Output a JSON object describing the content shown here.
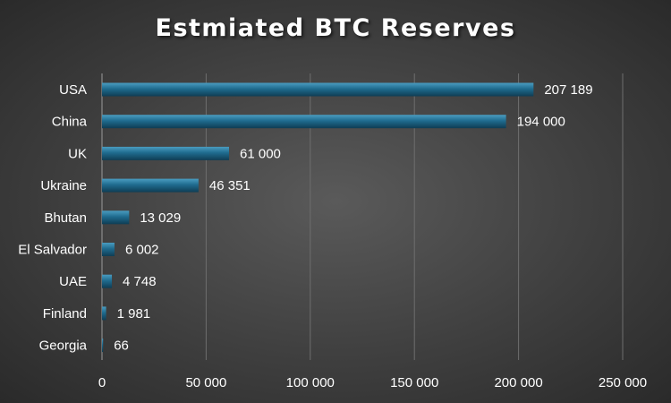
{
  "chart_data": {
    "type": "bar",
    "orientation": "horizontal",
    "title": "Estmiated BTC Reserves",
    "categories": [
      "USA",
      "China",
      "UK",
      "Ukraine",
      "Bhutan",
      "El Salvador",
      "UAE",
      "Finland",
      "Georgia"
    ],
    "values": [
      207189,
      194000,
      61000,
      46351,
      13029,
      6002,
      4748,
      1981,
      66
    ],
    "value_labels": [
      "207 189",
      "194 000",
      "61 000",
      "46 351",
      "13 029",
      "6 002",
      "4 748",
      "1 981",
      "66"
    ],
    "xlim": [
      0,
      250000
    ],
    "x_ticks": [
      0,
      50000,
      100000,
      150000,
      200000,
      250000
    ],
    "x_tick_labels": [
      "0",
      "50 000",
      "100 000",
      "150 000",
      "200 000",
      "250 000"
    ],
    "grid": "vertical",
    "legend": "none",
    "colors": {
      "bar": "#1f6b8e",
      "bar_highlight": "#4a9cc0",
      "bar_shadow": "#0f3d54",
      "grid": "#6e6e6e",
      "text": "#ffffff"
    }
  }
}
